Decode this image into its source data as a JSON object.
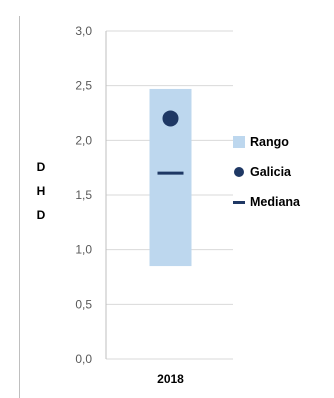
{
  "chart_data": {
    "type": "range-dot",
    "categories": [
      "2018"
    ],
    "ylabel": "D\nH\nD",
    "ylim": [
      0.0,
      3.0
    ],
    "yticks": [
      "0,0",
      "0,5",
      "1,0",
      "1,5",
      "2,0",
      "2,5",
      "3,0"
    ],
    "grid": true,
    "legend_position": "right",
    "series": [
      {
        "name": "Rango",
        "kind": "range",
        "color": "#bdd7ee",
        "low": [
          0.85
        ],
        "high": [
          2.47
        ]
      },
      {
        "name": "Galicia",
        "kind": "marker",
        "color": "#1f3864",
        "values": [
          2.2
        ]
      },
      {
        "name": "Mediana",
        "kind": "dash",
        "color": "#1f3864",
        "values": [
          1.7
        ]
      }
    ]
  }
}
